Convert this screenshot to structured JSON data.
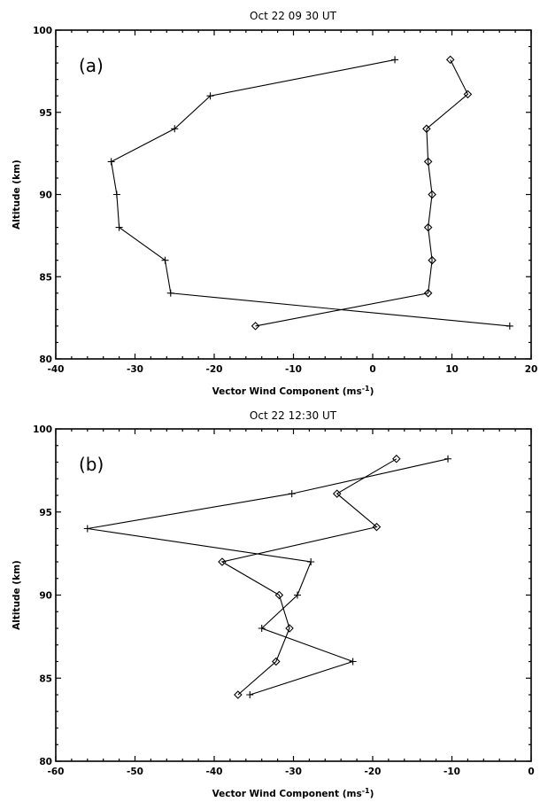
{
  "chart_data": [
    {
      "type": "line",
      "panel_label": "(a)",
      "title": "Oct 22 09 30 UT",
      "xlabel": "Vector Wind Component (ms",
      "xlabel_sup": "-1",
      "xlabel_end": ")",
      "ylabel": "Altitude (km)",
      "xlim": [
        -40,
        20
      ],
      "ylim": [
        80,
        100
      ],
      "xticks": [
        -40,
        -30,
        -20,
        -10,
        0,
        10,
        20
      ],
      "yticks": [
        80,
        85,
        90,
        95,
        100
      ],
      "grid": false,
      "series": [
        {
          "marker": "plus",
          "x": [
            17.3,
            -25.5,
            -26.2,
            -32,
            -32.3,
            -33,
            -25,
            -20.5,
            2.8
          ],
          "y": [
            82,
            84,
            86,
            88,
            90,
            92,
            94,
            96,
            98.2
          ]
        },
        {
          "marker": "diamond",
          "x": [
            -14.8,
            7,
            7.5,
            7,
            7.5,
            7,
            6.8,
            12,
            9.8
          ],
          "y": [
            82,
            84,
            86,
            88,
            90,
            92,
            94,
            96.1,
            98.2
          ]
        }
      ]
    },
    {
      "type": "line",
      "panel_label": "(b)",
      "title": "Oct 22 12:30 UT",
      "xlabel": "Vector Wind Component (ms",
      "xlabel_sup": "-1",
      "xlabel_end": ")",
      "ylabel": "Altitude (km)",
      "xlim": [
        -60,
        0
      ],
      "ylim": [
        80,
        100
      ],
      "xticks": [
        -60,
        -50,
        -40,
        -30,
        -20,
        -10,
        0
      ],
      "yticks": [
        80,
        85,
        90,
        95,
        100
      ],
      "grid": false,
      "series": [
        {
          "marker": "plus",
          "x": [
            -35.5,
            -22.5,
            -34,
            -29.5,
            -27.8,
            -56,
            -30.2,
            -10.5
          ],
          "y": [
            84,
            86,
            88,
            90,
            92,
            94,
            96.1,
            98.2
          ]
        },
        {
          "marker": "diamond",
          "x": [
            -37,
            -32.2,
            -30.5,
            -31.8,
            -39,
            -19.5,
            -24.5,
            -17
          ],
          "y": [
            84,
            86,
            88,
            90,
            92,
            94.1,
            96.1,
            98.2
          ]
        }
      ]
    }
  ]
}
